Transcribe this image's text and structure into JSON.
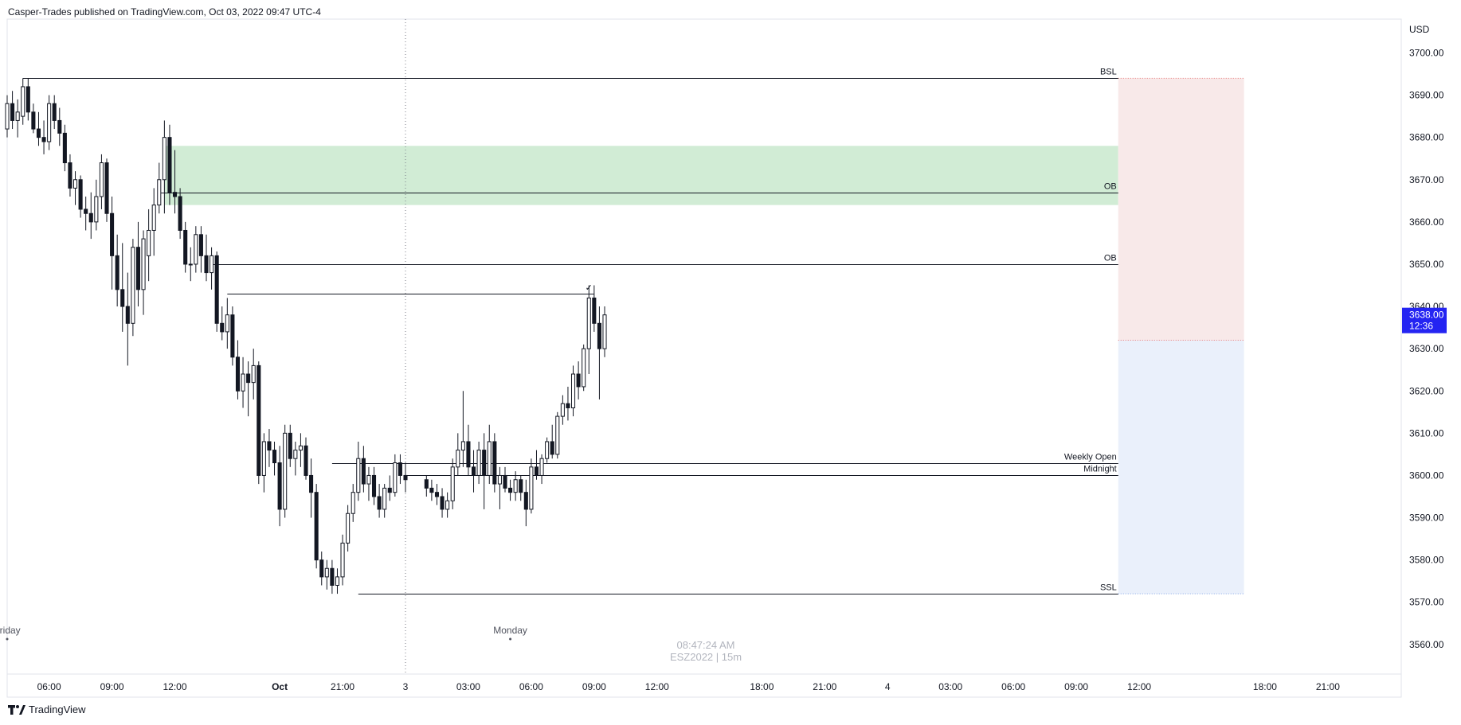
{
  "header": {
    "publisher_line": "Casper-Trades published on TradingView.com, Oct 03, 2022 09:47 UTC-4"
  },
  "footer": {
    "brand": "TradingView"
  },
  "watermark": {
    "time": "08:47:24 AM",
    "symbol": "ESZ2022 | 15m"
  },
  "price_axis": {
    "currency": "USD",
    "last_price": "3638.00",
    "countdown": "12:36",
    "last_price_color": "#2424f2"
  },
  "day_labels": [
    {
      "text": "Friday",
      "x": "09-30 04:00"
    },
    {
      "text": "Monday",
      "x": "10-03 04:00"
    }
  ],
  "colors": {
    "ob_zone": "#d1ecd5",
    "risk_zone": "#f8e9e9",
    "reward_zone": "#eaf0fb",
    "up_candle": "#ffffff",
    "down_candle": "#131722",
    "level_line": "#131722",
    "dotted_line": "#e57373"
  },
  "chart_data": {
    "type": "candlestick",
    "symbol": "ESZ2022",
    "interval": "15m",
    "ylim": [
      3553,
      3708
    ],
    "xlim": [
      "09-30 04:00",
      "10-04 22:30"
    ],
    "y_ticks": [
      "3560.00",
      "3570.00",
      "3580.00",
      "3590.00",
      "3600.00",
      "3610.00",
      "3620.00",
      "3630.00",
      "3640.00",
      "3650.00",
      "3660.00",
      "3670.00",
      "3680.00",
      "3690.00",
      "3700.00"
    ],
    "x_ticks": [
      {
        "label": "06:00",
        "x": "09-30 06:00",
        "bold": false
      },
      {
        "label": "09:00",
        "x": "09-30 09:00",
        "bold": false
      },
      {
        "label": "12:00",
        "x": "09-30 12:00",
        "bold": false
      },
      {
        "label": "Oct",
        "x": "09-30 17:00",
        "bold": true
      },
      {
        "label": "21:00",
        "x": "09-30 20:00",
        "bold": false
      },
      {
        "label": "3",
        "x": "09-30 23:00",
        "bold": false
      },
      {
        "label": "03:00",
        "x": "10-03 02:00",
        "bold": false
      },
      {
        "label": "06:00",
        "x": "10-03 05:00",
        "bold": false
      },
      {
        "label": "09:00",
        "x": "10-03 08:00",
        "bold": false
      },
      {
        "label": "12:00",
        "x": "10-03 11:00",
        "bold": false
      },
      {
        "label": "18:00",
        "x": "10-03 16:00",
        "bold": false
      },
      {
        "label": "21:00",
        "x": "10-03 19:00",
        "bold": false
      },
      {
        "label": "4",
        "x": "10-03 22:00",
        "bold": false
      },
      {
        "label": "03:00",
        "x": "10-04 01:00",
        "bold": false
      },
      {
        "label": "06:00",
        "x": "10-04 04:00",
        "bold": false
      },
      {
        "label": "09:00",
        "x": "10-04 07:00",
        "bold": false
      },
      {
        "label": "12:00",
        "x": "10-04 10:00",
        "bold": false
      },
      {
        "label": "18:00",
        "x": "10-04 16:00",
        "bold": false
      },
      {
        "label": "21:00",
        "x": "10-04 19:00",
        "bold": false
      }
    ],
    "vertical_marker": {
      "x": "09-30 23:00",
      "style": "dotted"
    },
    "zones": [
      {
        "name": "OB",
        "type": "order-block",
        "x_start": "09-30 11:30",
        "x_end": "10-04 09:00",
        "y_low": 3664,
        "y_high": 3678
      },
      {
        "name": "risk",
        "type": "position-stop",
        "x_start": "10-04 09:00",
        "x_end": "10-04 15:00",
        "y_low": 3632,
        "y_high": 3694
      },
      {
        "name": "target",
        "type": "position-target",
        "x_start": "10-04 09:00",
        "x_end": "10-04 15:00",
        "y_low": 3572,
        "y_high": 3632
      }
    ],
    "levels": [
      {
        "label": "BSL",
        "y": 3694,
        "x_start": "09-30 04:45",
        "x_end": "10-04 09:00"
      },
      {
        "label": "OB",
        "y": 3667,
        "x_start": "09-30 11:15",
        "x_end": "10-04 09:00"
      },
      {
        "label": "OB",
        "y": 3650,
        "x_start": "09-30 13:45",
        "x_end": "10-04 09:00"
      },
      {
        "label": "",
        "y": 3643,
        "x_start": "09-30 14:30",
        "x_end": "10-03 08:00"
      },
      {
        "label": "Weekly Open",
        "y": 3603,
        "x_start": "09-30 19:30",
        "x_end": "10-04 09:00"
      },
      {
        "label": "Midnight",
        "y": 3600,
        "x_start": "09-30 23:00",
        "x_end": "10-04 09:00"
      },
      {
        "label": "SSL",
        "y": 3572,
        "x_start": "09-30 20:45",
        "x_end": "10-04 09:00"
      }
    ],
    "annotations": [
      {
        "text": "✓",
        "x": "10-03 07:45",
        "y": 3643
      }
    ],
    "candles": [
      {
        "t": "09-30 04:00",
        "o": 3682,
        "h": 3690,
        "l": 3680,
        "c": 3688
      },
      {
        "t": "09-30 04:15",
        "o": 3688,
        "h": 3691,
        "l": 3682,
        "c": 3684
      },
      {
        "t": "09-30 04:30",
        "o": 3684,
        "h": 3689,
        "l": 3680,
        "c": 3686
      },
      {
        "t": "09-30 04:45",
        "o": 3685,
        "h": 3694,
        "l": 3683,
        "c": 3692
      },
      {
        "t": "09-30 05:00",
        "o": 3692,
        "h": 3694,
        "l": 3684,
        "c": 3686
      },
      {
        "t": "09-30 05:15",
        "o": 3686,
        "h": 3688,
        "l": 3681,
        "c": 3682
      },
      {
        "t": "09-30 05:30",
        "o": 3682,
        "h": 3686,
        "l": 3678,
        "c": 3680
      },
      {
        "t": "09-30 05:45",
        "o": 3680,
        "h": 3684,
        "l": 3676,
        "c": 3679
      },
      {
        "t": "09-30 06:00",
        "o": 3679,
        "h": 3690,
        "l": 3677,
        "c": 3688
      },
      {
        "t": "09-30 06:15",
        "o": 3688,
        "h": 3690,
        "l": 3682,
        "c": 3684
      },
      {
        "t": "09-30 06:30",
        "o": 3684,
        "h": 3687,
        "l": 3678,
        "c": 3681
      },
      {
        "t": "09-30 06:45",
        "o": 3681,
        "h": 3683,
        "l": 3672,
        "c": 3674
      },
      {
        "t": "09-30 07:00",
        "o": 3674,
        "h": 3676,
        "l": 3666,
        "c": 3668
      },
      {
        "t": "09-30 07:15",
        "o": 3668,
        "h": 3672,
        "l": 3664,
        "c": 3670
      },
      {
        "t": "09-30 07:30",
        "o": 3670,
        "h": 3671,
        "l": 3661,
        "c": 3663
      },
      {
        "t": "09-30 07:45",
        "o": 3663,
        "h": 3666,
        "l": 3658,
        "c": 3662
      },
      {
        "t": "09-30 08:00",
        "o": 3662,
        "h": 3667,
        "l": 3656,
        "c": 3660
      },
      {
        "t": "09-30 08:15",
        "o": 3660,
        "h": 3670,
        "l": 3658,
        "c": 3666
      },
      {
        "t": "09-30 08:30",
        "o": 3666,
        "h": 3676,
        "l": 3663,
        "c": 3674
      },
      {
        "t": "09-30 08:45",
        "o": 3674,
        "h": 3675,
        "l": 3660,
        "c": 3662
      },
      {
        "t": "09-30 09:00",
        "o": 3662,
        "h": 3666,
        "l": 3644,
        "c": 3652
      },
      {
        "t": "09-30 09:15",
        "o": 3652,
        "h": 3657,
        "l": 3640,
        "c": 3644
      },
      {
        "t": "09-30 09:30",
        "o": 3644,
        "h": 3655,
        "l": 3634,
        "c": 3640
      },
      {
        "t": "09-30 09:45",
        "o": 3640,
        "h": 3648,
        "l": 3626,
        "c": 3636
      },
      {
        "t": "09-30 10:00",
        "o": 3636,
        "h": 3656,
        "l": 3633,
        "c": 3654
      },
      {
        "t": "09-30 10:15",
        "o": 3654,
        "h": 3660,
        "l": 3640,
        "c": 3644
      },
      {
        "t": "09-30 10:30",
        "o": 3644,
        "h": 3658,
        "l": 3638,
        "c": 3656
      },
      {
        "t": "09-30 10:45",
        "o": 3652,
        "h": 3663,
        "l": 3646,
        "c": 3658
      },
      {
        "t": "09-30 11:00",
        "o": 3658,
        "h": 3668,
        "l": 3652,
        "c": 3664
      },
      {
        "t": "09-30 11:15",
        "o": 3664,
        "h": 3674,
        "l": 3662,
        "c": 3670
      },
      {
        "t": "09-30 11:30",
        "o": 3670,
        "h": 3684,
        "l": 3662,
        "c": 3680
      },
      {
        "t": "09-30 11:45",
        "o": 3680,
        "h": 3683,
        "l": 3664,
        "c": 3667
      },
      {
        "t": "09-30 12:00",
        "o": 3667,
        "h": 3677,
        "l": 3662,
        "c": 3666
      },
      {
        "t": "09-30 12:15",
        "o": 3666,
        "h": 3668,
        "l": 3656,
        "c": 3658
      },
      {
        "t": "09-30 12:30",
        "o": 3658,
        "h": 3660,
        "l": 3648,
        "c": 3650
      },
      {
        "t": "09-30 12:45",
        "o": 3650,
        "h": 3654,
        "l": 3646,
        "c": 3650
      },
      {
        "t": "09-30 13:00",
        "o": 3650,
        "h": 3659,
        "l": 3648,
        "c": 3657
      },
      {
        "t": "09-30 13:15",
        "o": 3657,
        "h": 3659,
        "l": 3648,
        "c": 3652
      },
      {
        "t": "09-30 13:30",
        "o": 3652,
        "h": 3657,
        "l": 3646,
        "c": 3648
      },
      {
        "t": "09-30 13:45",
        "o": 3648,
        "h": 3654,
        "l": 3644,
        "c": 3652
      },
      {
        "t": "09-30 14:00",
        "o": 3652,
        "h": 3653,
        "l": 3634,
        "c": 3636
      },
      {
        "t": "09-30 14:15",
        "o": 3636,
        "h": 3640,
        "l": 3632,
        "c": 3634
      },
      {
        "t": "09-30 14:30",
        "o": 3634,
        "h": 3642,
        "l": 3630,
        "c": 3638
      },
      {
        "t": "09-30 14:45",
        "o": 3638,
        "h": 3640,
        "l": 3626,
        "c": 3628
      },
      {
        "t": "09-30 15:00",
        "o": 3628,
        "h": 3632,
        "l": 3618,
        "c": 3620
      },
      {
        "t": "09-30 15:15",
        "o": 3620,
        "h": 3628,
        "l": 3616,
        "c": 3624
      },
      {
        "t": "09-30 15:30",
        "o": 3624,
        "h": 3627,
        "l": 3614,
        "c": 3622
      },
      {
        "t": "09-30 15:45",
        "o": 3622,
        "h": 3630,
        "l": 3618,
        "c": 3626
      },
      {
        "t": "09-30 16:00",
        "o": 3626,
        "h": 3627,
        "l": 3598,
        "c": 3600
      },
      {
        "t": "09-30 16:15",
        "o": 3600,
        "h": 3610,
        "l": 3596,
        "c": 3608
      },
      {
        "t": "09-30 16:30",
        "o": 3608,
        "h": 3611,
        "l": 3602,
        "c": 3606
      },
      {
        "t": "09-30 16:45",
        "o": 3606,
        "h": 3608,
        "l": 3600,
        "c": 3603
      },
      {
        "t": "09-30 17:00",
        "o": 3603,
        "h": 3607,
        "l": 3588,
        "c": 3592
      },
      {
        "t": "09-30 17:15",
        "o": 3592,
        "h": 3612,
        "l": 3590,
        "c": 3610
      },
      {
        "t": "09-30 17:30",
        "o": 3610,
        "h": 3612,
        "l": 3602,
        "c": 3604
      },
      {
        "t": "09-30 17:45",
        "o": 3604,
        "h": 3608,
        "l": 3600,
        "c": 3606
      },
      {
        "t": "09-30 18:00",
        "o": 3606,
        "h": 3610,
        "l": 3602,
        "c": 3607
      },
      {
        "t": "09-30 18:15",
        "o": 3607,
        "h": 3609,
        "l": 3599,
        "c": 3600
      },
      {
        "t": "09-30 18:30",
        "o": 3600,
        "h": 3604,
        "l": 3590,
        "c": 3596
      },
      {
        "t": "09-30 18:45",
        "o": 3596,
        "h": 3598,
        "l": 3578,
        "c": 3580
      },
      {
        "t": "09-30 19:00",
        "o": 3580,
        "h": 3582,
        "l": 3574,
        "c": 3576
      },
      {
        "t": "09-30 19:15",
        "o": 3576,
        "h": 3580,
        "l": 3573,
        "c": 3578
      },
      {
        "t": "09-30 19:30",
        "o": 3578,
        "h": 3580,
        "l": 3572,
        "c": 3574
      },
      {
        "t": "09-30 19:45",
        "o": 3574,
        "h": 3578,
        "l": 3572,
        "c": 3576
      },
      {
        "t": "09-30 20:00",
        "o": 3576,
        "h": 3586,
        "l": 3574,
        "c": 3584
      },
      {
        "t": "09-30 20:15",
        "o": 3584,
        "h": 3593,
        "l": 3582,
        "c": 3591
      },
      {
        "t": "09-30 20:30",
        "o": 3591,
        "h": 3598,
        "l": 3589,
        "c": 3596
      },
      {
        "t": "09-30 20:45",
        "o": 3596,
        "h": 3608,
        "l": 3594,
        "c": 3604
      },
      {
        "t": "09-30 21:00",
        "o": 3604,
        "h": 3607,
        "l": 3596,
        "c": 3598
      },
      {
        "t": "09-30 21:15",
        "o": 3598,
        "h": 3602,
        "l": 3594,
        "c": 3600
      },
      {
        "t": "09-30 21:30",
        "o": 3600,
        "h": 3602,
        "l": 3593,
        "c": 3595
      },
      {
        "t": "09-30 21:45",
        "o": 3595,
        "h": 3598,
        "l": 3590,
        "c": 3592
      },
      {
        "t": "09-30 22:00",
        "o": 3592,
        "h": 3598,
        "l": 3590,
        "c": 3597
      },
      {
        "t": "09-30 22:15",
        "o": 3597,
        "h": 3600,
        "l": 3594,
        "c": 3596
      },
      {
        "t": "09-30 22:30",
        "o": 3596,
        "h": 3605,
        "l": 3595,
        "c": 3603
      },
      {
        "t": "09-30 22:45",
        "o": 3603,
        "h": 3605,
        "l": 3598,
        "c": 3600
      },
      {
        "t": "09-30 23:00",
        "o": 3600,
        "h": 3603,
        "l": 3596,
        "c": 3599
      },
      {
        "t": "10-03 00:00",
        "o": 3599,
        "h": 3600,
        "l": 3595,
        "c": 3597
      },
      {
        "t": "10-03 00:15",
        "o": 3597,
        "h": 3599,
        "l": 3594,
        "c": 3596
      },
      {
        "t": "10-03 00:30",
        "o": 3596,
        "h": 3598,
        "l": 3593,
        "c": 3595
      },
      {
        "t": "10-03 00:45",
        "o": 3595,
        "h": 3597,
        "l": 3590,
        "c": 3592
      },
      {
        "t": "10-03 01:00",
        "o": 3592,
        "h": 3596,
        "l": 3590,
        "c": 3594
      },
      {
        "t": "10-03 01:15",
        "o": 3594,
        "h": 3604,
        "l": 3592,
        "c": 3602
      },
      {
        "t": "10-03 01:30",
        "o": 3602,
        "h": 3610,
        "l": 3600,
        "c": 3606
      },
      {
        "t": "10-03 01:45",
        "o": 3606,
        "h": 3620,
        "l": 3602,
        "c": 3608
      },
      {
        "t": "10-03 02:00",
        "o": 3608,
        "h": 3612,
        "l": 3600,
        "c": 3602
      },
      {
        "t": "10-03 02:15",
        "o": 3602,
        "h": 3606,
        "l": 3596,
        "c": 3600
      },
      {
        "t": "10-03 02:30",
        "o": 3600,
        "h": 3608,
        "l": 3598,
        "c": 3606
      },
      {
        "t": "10-03 02:45",
        "o": 3606,
        "h": 3610,
        "l": 3592,
        "c": 3600
      },
      {
        "t": "10-03 03:00",
        "o": 3600,
        "h": 3612,
        "l": 3598,
        "c": 3608
      },
      {
        "t": "10-03 03:15",
        "o": 3608,
        "h": 3610,
        "l": 3596,
        "c": 3598
      },
      {
        "t": "10-03 03:30",
        "o": 3598,
        "h": 3602,
        "l": 3592,
        "c": 3600
      },
      {
        "t": "10-03 03:45",
        "o": 3600,
        "h": 3602,
        "l": 3596,
        "c": 3597
      },
      {
        "t": "10-03 04:00",
        "o": 3597,
        "h": 3599,
        "l": 3594,
        "c": 3596
      },
      {
        "t": "10-03 04:15",
        "o": 3596,
        "h": 3601,
        "l": 3594,
        "c": 3599
      },
      {
        "t": "10-03 04:30",
        "o": 3599,
        "h": 3600,
        "l": 3594,
        "c": 3596
      },
      {
        "t": "10-03 04:45",
        "o": 3596,
        "h": 3599,
        "l": 3588,
        "c": 3592
      },
      {
        "t": "10-03 05:00",
        "o": 3592,
        "h": 3604,
        "l": 3591,
        "c": 3602
      },
      {
        "t": "10-03 05:15",
        "o": 3602,
        "h": 3606,
        "l": 3599,
        "c": 3600
      },
      {
        "t": "10-03 05:30",
        "o": 3600,
        "h": 3605,
        "l": 3598,
        "c": 3604
      },
      {
        "t": "10-03 05:45",
        "o": 3604,
        "h": 3609,
        "l": 3603,
        "c": 3608
      },
      {
        "t": "10-03 06:00",
        "o": 3608,
        "h": 3612,
        "l": 3604,
        "c": 3605
      },
      {
        "t": "10-03 06:15",
        "o": 3605,
        "h": 3615,
        "l": 3604,
        "c": 3614
      },
      {
        "t": "10-03 06:30",
        "o": 3614,
        "h": 3619,
        "l": 3612,
        "c": 3617
      },
      {
        "t": "10-03 06:45",
        "o": 3617,
        "h": 3621,
        "l": 3613,
        "c": 3616
      },
      {
        "t": "10-03 07:00",
        "o": 3616,
        "h": 3626,
        "l": 3614,
        "c": 3624
      },
      {
        "t": "10-03 07:15",
        "o": 3624,
        "h": 3627,
        "l": 3618,
        "c": 3621
      },
      {
        "t": "10-03 07:30",
        "o": 3621,
        "h": 3631,
        "l": 3620,
        "c": 3630
      },
      {
        "t": "10-03 07:45",
        "o": 3630,
        "h": 3645,
        "l": 3624,
        "c": 3642
      },
      {
        "t": "10-03 08:00",
        "o": 3642,
        "h": 3645,
        "l": 3634,
        "c": 3636
      },
      {
        "t": "10-03 08:15",
        "o": 3636,
        "h": 3640,
        "l": 3618,
        "c": 3630
      },
      {
        "t": "10-03 08:30",
        "o": 3630,
        "h": 3640,
        "l": 3628,
        "c": 3638
      }
    ]
  }
}
